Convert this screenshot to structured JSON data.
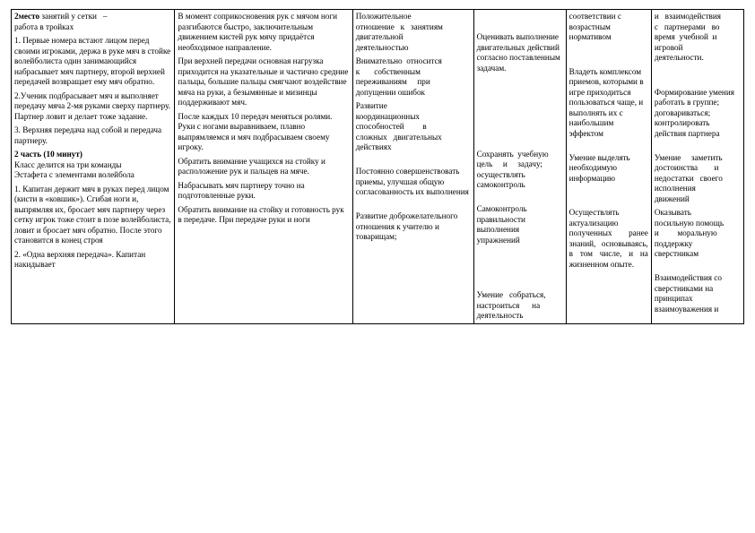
{
  "columns": {
    "c1": {
      "line1a": "2место",
      "line1b": "занятий",
      "line1c": "у",
      "line1d": "сетки",
      "line1e": "–",
      "line2": "работа в тройках",
      "p1": "1. Первые номера встают лицом перед своими игроками, держа в руке мяч в стойке волейболиста один занимающийся набрасывает мяч партнеру, второй верхней передачей возвращает ему мяч обратно.",
      "p2": "2.Ученик подбрасывает мяч и выполняет передачу мяча 2-мя руками сверху партнеру. Партнер ловит и делает тоже задание.",
      "p3": "3. Верхняя передача над собой и передача партнеру.",
      "h2": "2 часть (10 минут)",
      "p4": "Класс делится на три команды",
      "p5": "Эстафета с элементами волейбола",
      "p6": "1. Капитан держит мяч в руках перед лицом (кисти в «ковшик»). Сгибая ноги и, выпрямляя их, бросает мяч партнеру через сетку игрок тоже стоит в позе волейболиста, ловит и бросает мяч обратно. После этого становится в конец строя",
      "p7": "2. «Одна верхняя передача». Капитан накидывает"
    },
    "c2": {
      "p1": "В момент соприкосновения рук с мячом ноги разгибаются быстро, заключительным движением кистей рук мячу придаётся необходимое направление.",
      "p2": "При верхней передачи основная нагрузка приходится на указательные и частично средние пальцы, большие пальцы смягчают воздействие мяча на руки, а безымянные и мизинцы поддерживают мяч.",
      "p3": "После каждых 10 передач меняться ролями. Руки с ногами выравниваем, плавно выпрямляемся и мяч подбрасываем своему игроку.",
      "p4": "Обратить внимание учащихся на стойку и расположение рук и пальцев на мяче.",
      "p5": "Набрасывать мяч партнеру точно на подготовленные руки.",
      "p6": "Обратить внимание на стойку и готовность рук в передаче. При передаче руки и ноги"
    },
    "c3": {
      "p1a": "Положительное",
      "p1b": "отношение",
      "p1c": "к",
      "p1d": "занятиям",
      "p1e": "двигательной",
      "p1f": "деятельностью",
      "p2a": "Внимательно",
      "p2b": "относится",
      "p2c": "к",
      "p2d": "собственным",
      "p2e": "переживаниям",
      "p2f": "при",
      "p2g": "допущении ошибок",
      "p3a": "Развитие",
      "p3b": "координационных",
      "p3c": "способностей",
      "p3d": "в",
      "p3e": "сложных",
      "p3f": "двигательных",
      "p3g": "действиях",
      "p4": "Постоянно совершенствовать приемы, улучшая общую согласованность их выполнения",
      "p5": "Развитие доброжелательного отношения к учителю и товарищам;"
    },
    "c4": {
      "p1": "Оценивать выполнение двигательных действий согласно поставленным задачам.",
      "p2a": "Сохранять",
      "p2b": "учебную",
      "p2c": "цель",
      "p2d": "и",
      "p2e": "задачу;",
      "p2f": "осуществлять",
      "p2g": "самоконтроль",
      "p3": "Самоконтроль правильности выполнения упражнений",
      "p4a": "Умение",
      "p4b": "собраться,",
      "p4c": "настроиться",
      "p4d": "на",
      "p4e": "деятельность"
    },
    "c5": {
      "p1": "соответствии с возрастным нормативом",
      "p2": "Владеть комплексом приемов, которыми в игре приходиться пользоваться чаще, и выполнять их с наибольшим эффектом",
      "p3": "Умение выделять необходимую информацию",
      "p4": "Осуществлять актуализацию полученных ранее знаний, основываясь, в том числе, и на жизненном опыте."
    },
    "c6": {
      "p1a": "и",
      "p1b": "взаимодействия",
      "p1c": "с",
      "p1d": "партнерами",
      "p1e": "во",
      "p1f": "время",
      "p1g": "учебной",
      "p1h": "и",
      "p1i": "игровой",
      "p1j": "деятельности.",
      "p2": "Формирование умения работать в группе; договариваться; контролировать действия партнера",
      "p3a": "Умение",
      "p3b": "заметить",
      "p3c": "достоинства",
      "p3d": "и",
      "p3e": "недостатки",
      "p3f": "своего",
      "p3g": "исполнения",
      "p3h": "движений",
      "p4a": "Оказывать",
      "p4b": "посильную помощь",
      "p4c": "и",
      "p4d": "моральную",
      "p4e": "поддержку",
      "p4f": "сверстникам",
      "p5": "Взаимодействия со сверстниками на принципах взаимоуважения и"
    }
  }
}
